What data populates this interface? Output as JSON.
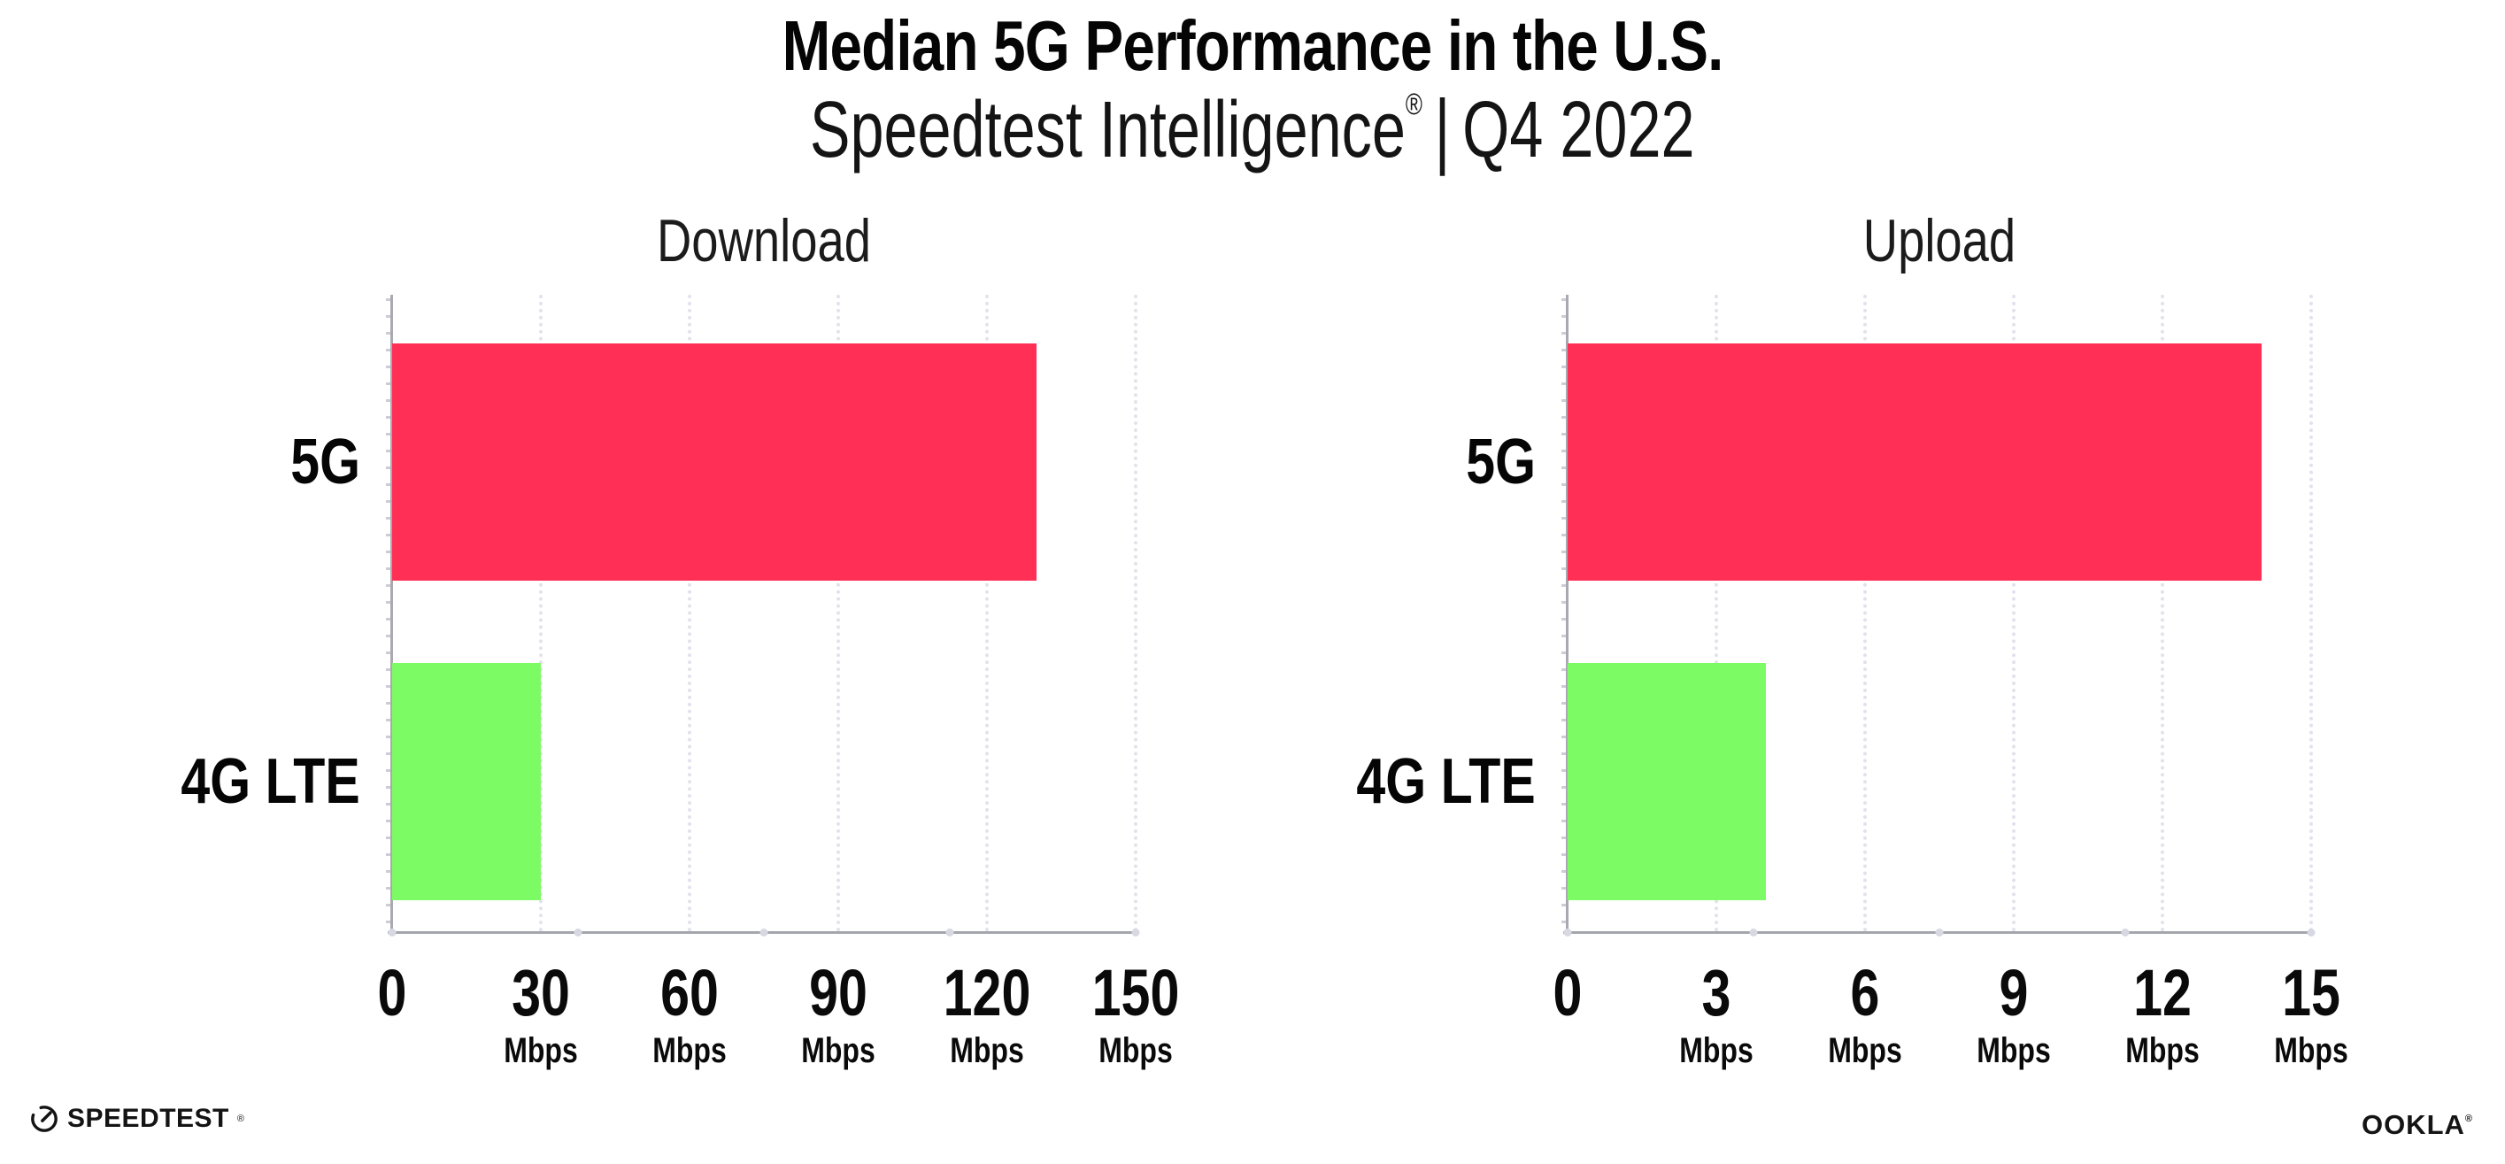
{
  "header": {
    "title": "Median 5G Performance in the U.S.",
    "subtitle_brand": "Speedtest Intelligence",
    "subtitle_regmark": "®",
    "subtitle_separator": "|",
    "subtitle_period": "Q4 2022"
  },
  "chart_data": [
    {
      "type": "bar",
      "orientation": "horizontal",
      "title": "Download",
      "categories": [
        "5G",
        "4G LTE"
      ],
      "values": [
        130,
        30
      ],
      "unit": "Mbps",
      "xlim": [
        0,
        150
      ],
      "xticks": [
        0,
        30,
        60,
        90,
        120,
        150
      ],
      "bar_colors": [
        "#FF2F56",
        "#7DFB64"
      ],
      "grid": "dotted vertical gridlines at each labeled tick",
      "legend": "none"
    },
    {
      "type": "bar",
      "orientation": "horizontal",
      "title": "Upload",
      "categories": [
        "5G",
        "4G LTE"
      ],
      "values": [
        14,
        4
      ],
      "unit": "Mbps",
      "xlim": [
        0,
        15
      ],
      "xticks": [
        0,
        3,
        6,
        9,
        12,
        15
      ],
      "bar_colors": [
        "#FF2F56",
        "#7DFB64"
      ],
      "grid": "dotted vertical gridlines at each labeled tick",
      "legend": "none"
    }
  ],
  "footer": {
    "speedtest_label": "SPEEDTEST",
    "speedtest_regmark": "®",
    "ookla_label": "OOKLA",
    "ookla_regmark": "®"
  },
  "colors": {
    "bar_5g": "#FF2F56",
    "bar_4g_lte": "#7DFB64",
    "axis_line": "#A5A5AD",
    "gridline": "#E2E2EC",
    "text": "#0B0B0B"
  }
}
